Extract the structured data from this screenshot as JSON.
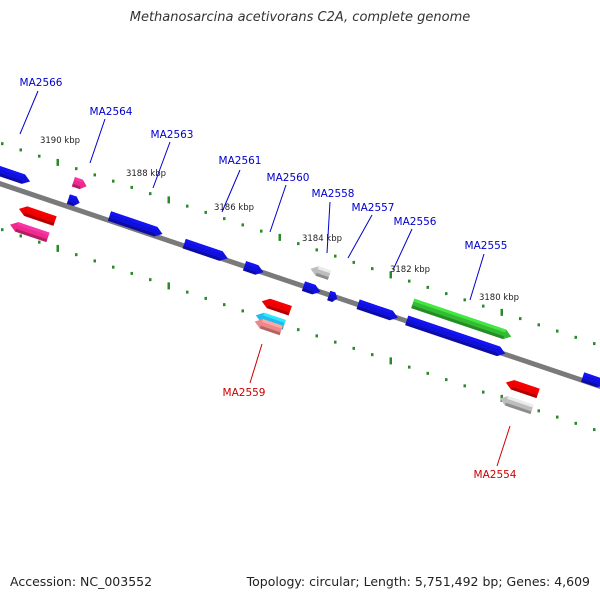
{
  "title": "Methanosarcina acetivorans C2A, complete genome",
  "footer": {
    "accession": "Accession: NC_003552",
    "summary": "Topology: circular; Length: 5,751,492 bp; Genes: 4,609"
  },
  "colors": {
    "backbone": "#7a7a7a",
    "tick": "#2a8a2a",
    "label_forward": "#0000cc",
    "label_reverse": "#cc0000",
    "gene_blue": "#1010dd",
    "gene_red": "#ee0000",
    "gene_pink": "#ee2a8a",
    "gene_green": "#33bb33",
    "gene_grey": "#bdbdbd",
    "gene_cyan": "#22bbee",
    "gene_salmon": "#ee8888"
  },
  "scale_labels": [
    "3190 kbp",
    "3188 kbp",
    "3186 kbp",
    "3184 kbp",
    "3182 kbp",
    "3180 kbp"
  ],
  "gene_labels": {
    "forward": [
      "MA2566",
      "MA2564",
      "MA2563",
      "MA2561",
      "MA2560",
      "MA2558",
      "MA2557",
      "MA2556",
      "MA2555"
    ],
    "reverse": [
      "MA2559",
      "MA2554"
    ]
  }
}
